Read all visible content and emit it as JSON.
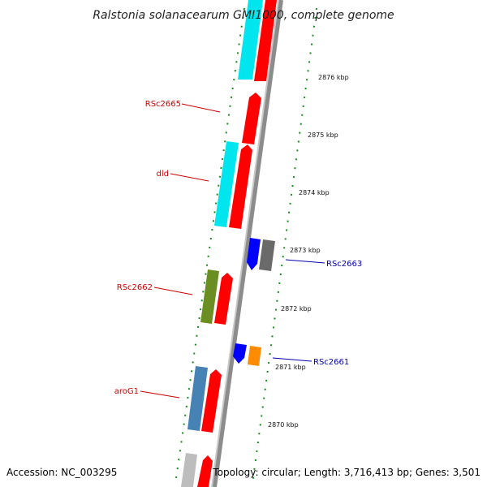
{
  "title": "Ralstonia solanacearum GMI1000, complete genome",
  "footer": {
    "accession": "Accession: NC_003295",
    "topology": "Topology: circular; Length: 3,716,413 bp; Genes: 3,501"
  },
  "scale_labels": [
    "2876 kbp",
    "2875 kbp",
    "2874 kbp",
    "2873 kbp",
    "2872 kbp",
    "2871 kbp",
    "2870 kbp"
  ],
  "gene_labels": [
    {
      "name": "RSc2665",
      "color": "#cc0000"
    },
    {
      "name": "dld",
      "color": "#cc0000"
    },
    {
      "name": "RSc2663",
      "color": "#0000aa"
    },
    {
      "name": "RSc2662",
      "color": "#cc0000"
    },
    {
      "name": "RSc2661",
      "color": "#0000aa"
    },
    {
      "name": "aroG1",
      "color": "#cc0000"
    }
  ],
  "colors": {
    "forward": "#ff0000",
    "cds_cyan": "#00e5ee",
    "cds_olive": "#6b8e23",
    "cds_steel": "#4682b4",
    "cds_gray": "#bdbdbd",
    "reverse_blue": "#0000ff",
    "reverse_gray": "#6a6a6a",
    "reverse_orange": "#ff8c00",
    "backbone": "#8c8c8c",
    "tick": "#1a8a1a"
  }
}
